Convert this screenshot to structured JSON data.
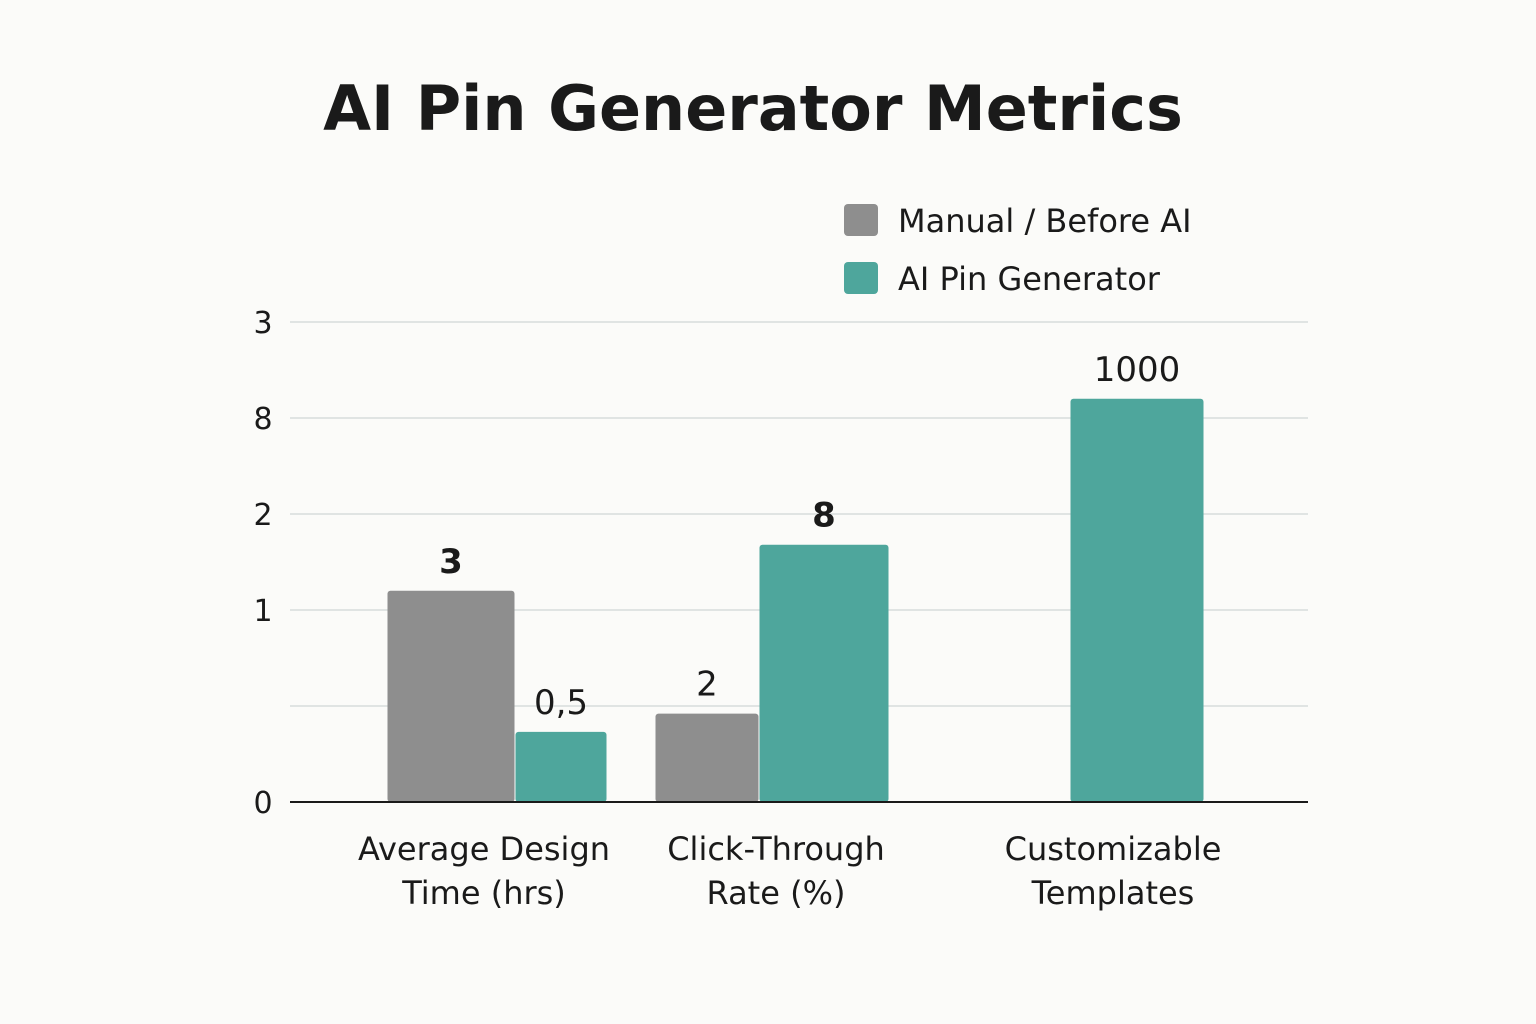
{
  "chart_data": {
    "type": "bar",
    "title": "AI Pin Generator Metrics",
    "xlabel": "",
    "ylabel": "",
    "categories": [
      [
        "Average Design",
        "Time (hrs)"
      ],
      [
        "Click-Through",
        "Rate (%)"
      ],
      [
        "Customizable",
        "Templates"
      ]
    ],
    "y_tick_labels": [
      "0",
      "",
      "1",
      "2",
      "8",
      "3"
    ],
    "grid": true,
    "legend_position": "top-right",
    "series": [
      {
        "name": "Manual / Before AI",
        "color": "#8e8e8e",
        "values": [
          3,
          2,
          null
        ],
        "labels": [
          "3",
          "2",
          ""
        ],
        "level": [
          2.2,
          0.92,
          0
        ]
      },
      {
        "name": "AI Pin Generator",
        "color": "#4ea69c",
        "values": [
          0.5,
          8,
          1000
        ],
        "labels": [
          "0,5",
          "8",
          "1000"
        ],
        "level": [
          0.73,
          2.68,
          4.2
        ]
      }
    ]
  }
}
